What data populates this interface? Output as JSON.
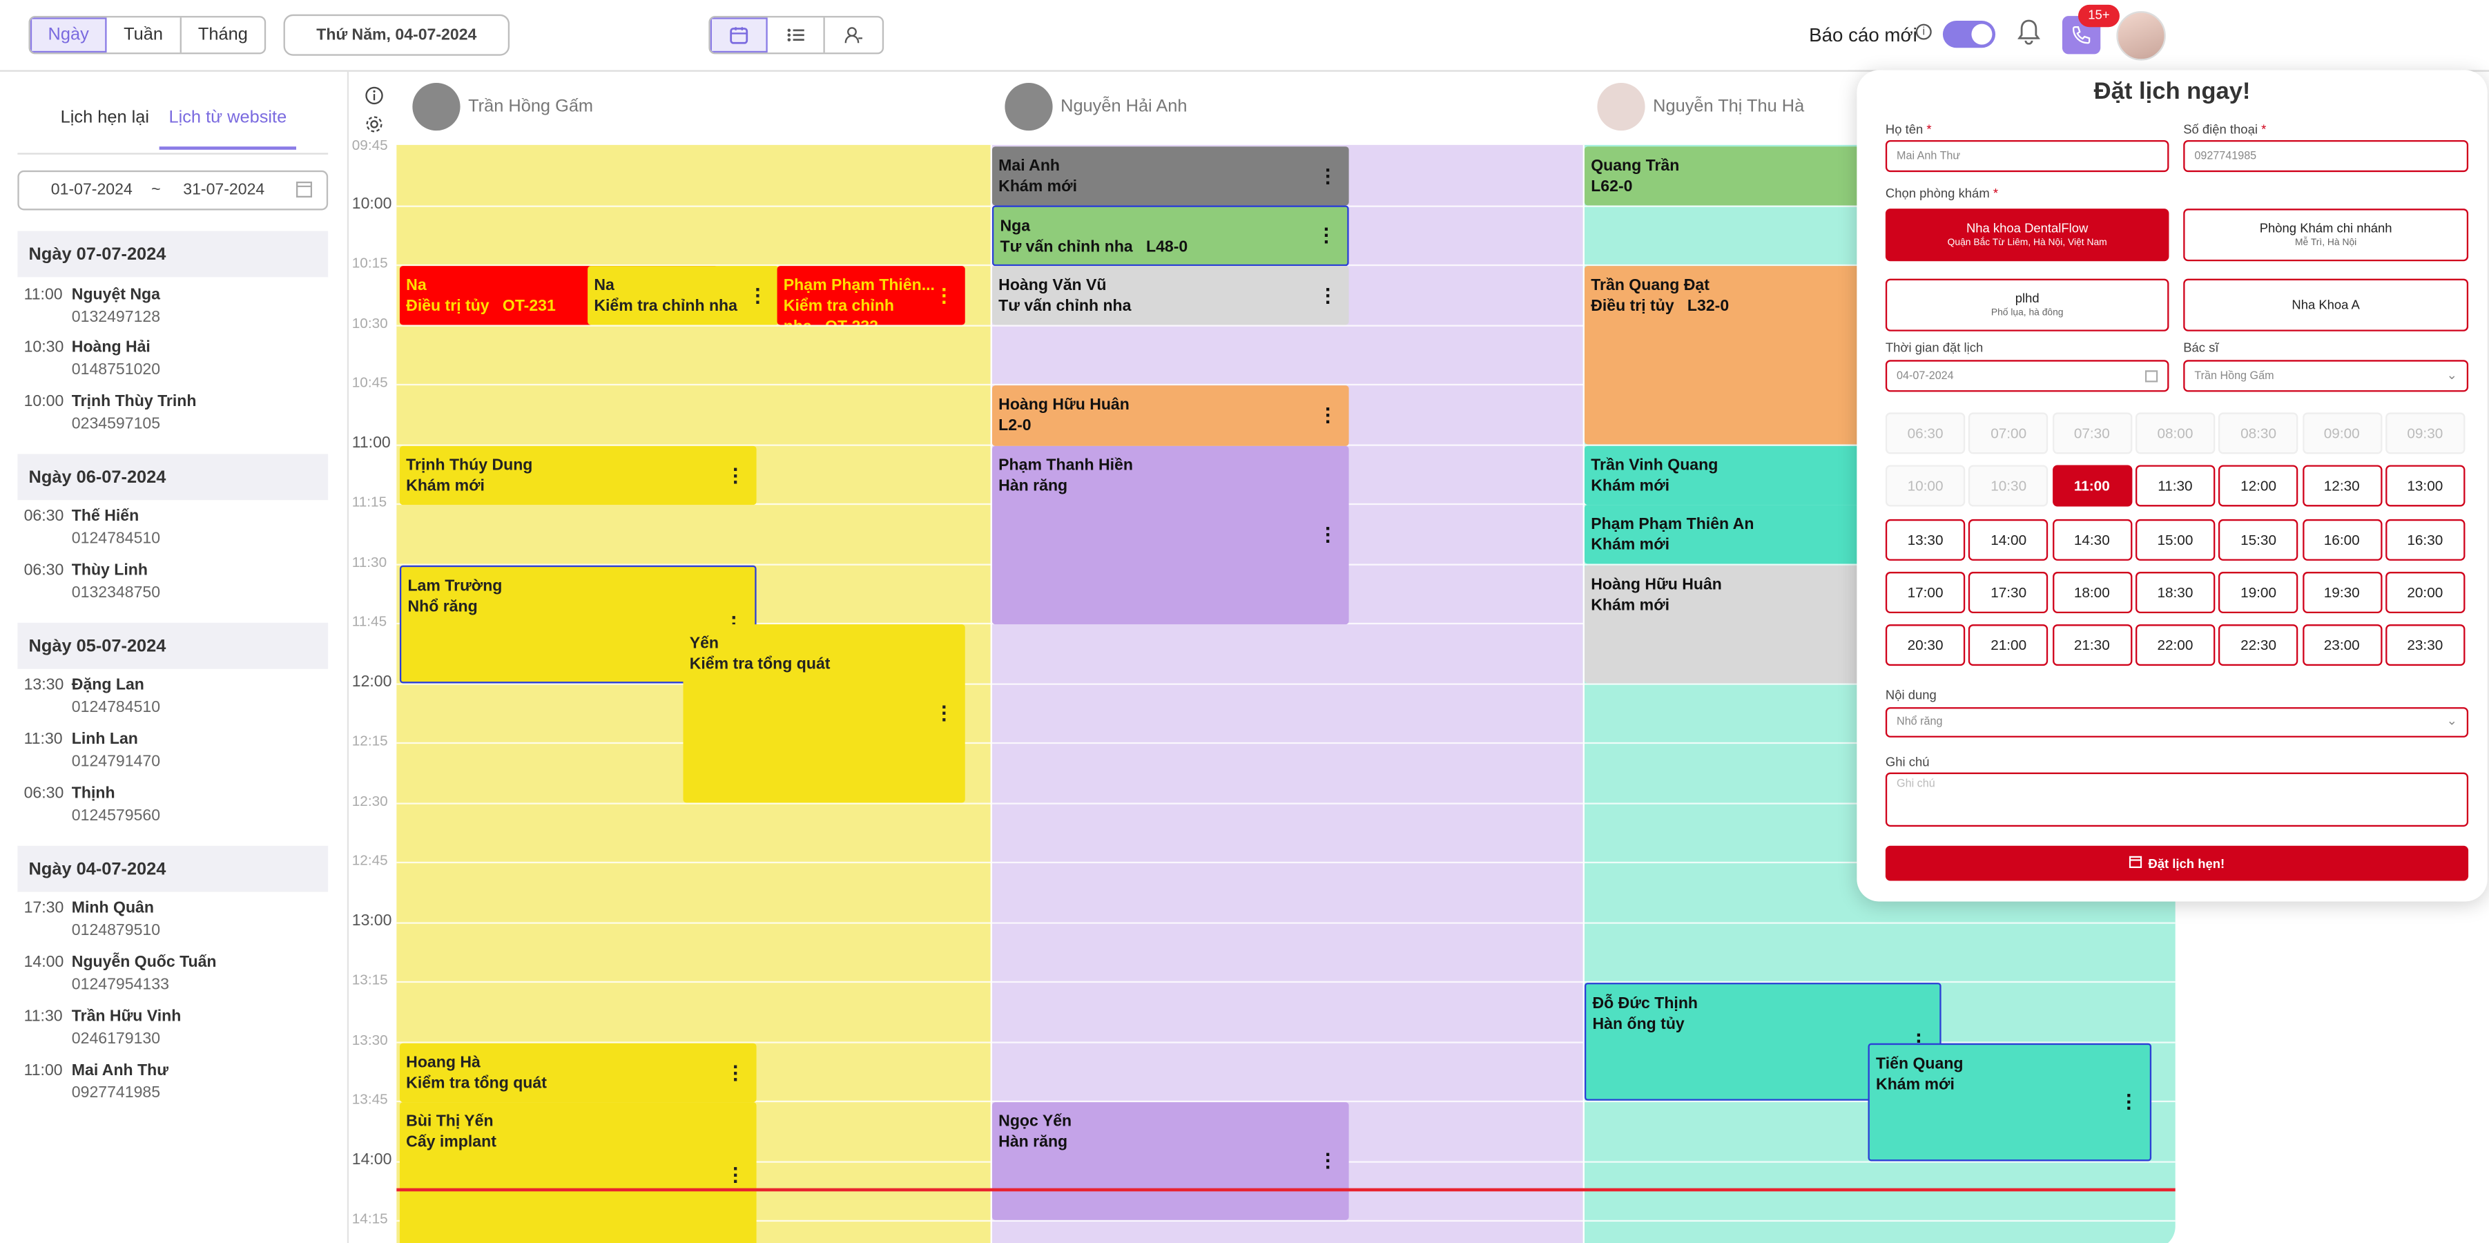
{
  "toolbar": {
    "view_tabs": [
      "Ngày",
      "Tuần",
      "Tháng"
    ],
    "date": "Thứ Năm, 04-07-2024",
    "report_label": "Báo cáo mới",
    "notif_badge": "15+"
  },
  "left_panel": {
    "tabs": [
      "Lịch hẹn lại",
      "Lịch từ website"
    ],
    "range_from": "01-07-2024",
    "range_sep": "~",
    "range_to": "31-07-2024",
    "days": [
      {
        "title": "Ngày 07-07-2024",
        "items": [
          {
            "time": "11:00",
            "name": "Nguyệt Nga",
            "phone": "0132497128"
          },
          {
            "time": "10:30",
            "name": "Hoàng Hải",
            "phone": "0148751020"
          },
          {
            "time": "10:00",
            "name": "Trịnh Thùy Trinh",
            "phone": "0234597105"
          }
        ]
      },
      {
        "title": "Ngày 06-07-2024",
        "items": [
          {
            "time": "06:30",
            "name": "Thế Hiến",
            "phone": "0124784510"
          },
          {
            "time": "06:30",
            "name": "Thùy Linh",
            "phone": "0132348750"
          }
        ]
      },
      {
        "title": "Ngày 05-07-2024",
        "items": [
          {
            "time": "13:30",
            "name": "Đặng Lan",
            "phone": "0124784510"
          },
          {
            "time": "11:30",
            "name": "Linh Lan",
            "phone": "0124791470"
          },
          {
            "time": "06:30",
            "name": "Thịnh",
            "phone": "0124579560"
          }
        ]
      },
      {
        "title": "Ngày 04-07-2024",
        "items": [
          {
            "time": "17:30",
            "name": "Minh Quân",
            "phone": "0124879510"
          },
          {
            "time": "14:00",
            "name": "Nguyễn Quốc Tuấn",
            "phone": "01247954133"
          },
          {
            "time": "11:30",
            "name": "Trần Hữu Vinh",
            "phone": "0246179130"
          },
          {
            "time": "11:00",
            "name": "Mai Anh Thư",
            "phone": "0927741985"
          }
        ]
      }
    ]
  },
  "calendar": {
    "doctors": [
      "Trần Hồng Gấm",
      "Nguyễn Hải Anh",
      "Nguyễn Thị Thu Hà"
    ],
    "time_labels": [
      "09:45",
      "10:00",
      "10:15",
      "10:30",
      "10:45",
      "11:00",
      "11:15",
      "11:30",
      "11:45",
      "12:00",
      "12:15",
      "12:30",
      "12:45",
      "13:00",
      "13:15",
      "13:30",
      "13:45",
      "14:00",
      "14:15"
    ],
    "events": [
      {
        "name": "Na",
        "desc": "Điều trị tủy",
        "code": "OT-231"
      },
      {
        "name": "Na",
        "desc": "Kiểm tra chỉnh nha",
        "code": ""
      },
      {
        "name": "Phạm Phạm Thiên...",
        "desc": "Kiểm tra chỉnh nha",
        "code": "OT-232"
      },
      {
        "name": "Trịnh Thúy Dung",
        "desc": "Khám mới",
        "code": ""
      },
      {
        "name": "Lam Trường",
        "desc": "Nhổ răng",
        "code": ""
      },
      {
        "name": "Yến",
        "desc": "Kiểm tra tổng quát",
        "code": ""
      },
      {
        "name": "Hoang Hà",
        "desc": "Kiểm tra tổng quát",
        "code": ""
      },
      {
        "name": "Bùi Thị Yến",
        "desc": "Cấy implant",
        "code": ""
      },
      {
        "name": "Mai Anh",
        "desc": "Khám mới",
        "code": ""
      },
      {
        "name": "Nga",
        "desc": "Tư vấn chỉnh nha",
        "code": "L48-0"
      },
      {
        "name": "Hoàng Văn Vũ",
        "desc": "Tư vấn chỉnh nha",
        "code": ""
      },
      {
        "name": "Hoàng Hữu Huân",
        "desc": "L2-0",
        "code": ""
      },
      {
        "name": "Phạm Thanh Hiền",
        "desc": "Hàn răng",
        "code": ""
      },
      {
        "name": "Ngọc Yến",
        "desc": "Hàn răng",
        "code": ""
      },
      {
        "name": "Quang Trần",
        "desc": "L62-0",
        "code": ""
      },
      {
        "name": "Trần Quang Đạt",
        "desc": "Điều trị tủy",
        "code": "L32-0"
      },
      {
        "name": "Trần Vinh Quang",
        "desc": "Khám mới",
        "code": ""
      },
      {
        "name": "Phạm Phạm Thiên An",
        "desc": "Khám mới",
        "code": ""
      },
      {
        "name": "Hoàng Hữu Huân",
        "desc": "Khám mới",
        "code": ""
      },
      {
        "name": "Đỗ Đức Thịnh",
        "desc": "Hàn ống tủy",
        "code": ""
      },
      {
        "name": "Tiến Quang",
        "desc": "Khám mới",
        "code": ""
      }
    ]
  },
  "booking": {
    "title": "Đặt lịch ngay!",
    "name_label": "Họ tên",
    "name_value": "Mai Anh Thư",
    "phone_label": "Số điện thoại",
    "phone_value": "0927741985",
    "clinic_label": "Chọn phòng khám",
    "clinics": [
      {
        "name": "Nha khoa DentalFlow",
        "addr": "Quận Bắc Từ Liêm, Hà Nội, Việt Nam"
      },
      {
        "name": "Phòng Khám chi nhánh",
        "addr": "Mễ Trì, Hà Nội"
      },
      {
        "name": "plhd",
        "addr": "Phố lụa, hà đông"
      },
      {
        "name": "Nha Khoa A",
        "addr": ""
      }
    ],
    "time_label": "Thời gian đặt lịch",
    "time_value": "04-07-2024",
    "doctor_label": "Bác sĩ",
    "doctor_value": "Trần Hồng Gấm",
    "slots": [
      "06:30",
      "07:00",
      "07:30",
      "08:00",
      "08:30",
      "09:00",
      "09:30",
      "10:00",
      "10:30",
      "11:00",
      "11:30",
      "12:00",
      "12:30",
      "13:00",
      "13:30",
      "14:00",
      "14:30",
      "15:00",
      "15:30",
      "16:00",
      "16:30",
      "17:00",
      "17:30",
      "18:00",
      "18:30",
      "19:00",
      "19:30",
      "20:00",
      "20:30",
      "21:00",
      "21:30",
      "22:00",
      "22:30",
      "23:00",
      "23:30"
    ],
    "disabled_count": 9,
    "selected_slot": "11:00",
    "content_label": "Nội dung",
    "content_value": "Nhổ răng",
    "note_label": "Ghi chú",
    "note_placeholder": "Ghi chú",
    "submit_label": "Đặt lịch hẹn!"
  },
  "colors": {
    "accent": "#8a7be6",
    "brand_red": "#d0021b",
    "col1_bg": "#f7ee8a",
    "col2_bg": "#e3d5f5",
    "col3_bg": "#a8f0de"
  }
}
